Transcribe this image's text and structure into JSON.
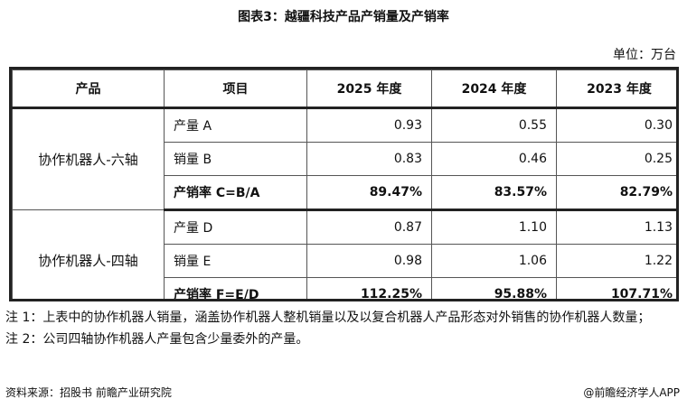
{
  "title": "图表3：越疆科技产品产销量及产销率",
  "unit": "单位：万台",
  "table": {
    "headers": [
      "产品",
      "项目",
      "2025 年度",
      "2024 年度",
      "2023 年度"
    ],
    "groups": [
      {
        "product": "协作机器人-六轴",
        "rows": [
          {
            "item": "产量 A",
            "v2025": "0.93",
            "v2024": "0.55",
            "v2023": "0.30"
          },
          {
            "item": "销量 B",
            "v2025": "0.83",
            "v2024": "0.46",
            "v2023": "0.25"
          },
          {
            "item": "产销率 C=B/A",
            "v2025": "89.47%",
            "v2024": "83.57%",
            "v2023": "82.79%"
          }
        ]
      },
      {
        "product": "协作机器人-四轴",
        "rows": [
          {
            "item": "产量 D",
            "v2025": "0.87",
            "v2024": "1.10",
            "v2023": "1.13"
          },
          {
            "item": "销量 E",
            "v2025": "0.98",
            "v2024": "1.06",
            "v2023": "1.22"
          },
          {
            "item": "产销率 F=E/D",
            "v2025": "112.25%",
            "v2024": "95.88%",
            "v2023": "107.71%"
          }
        ]
      }
    ]
  },
  "notes": [
    "注 1：上表中的协作机器人销量，涵盖协作机器人整机销量以及以复合机器人产品形态对外销售的协作机器人数量；",
    "注 2：公司四轴协作机器人产量包含少量委外的产量。"
  ],
  "source": "资料来源：招股书 前瞻产业研究院",
  "brand": "@前瞻经济学人APP"
}
